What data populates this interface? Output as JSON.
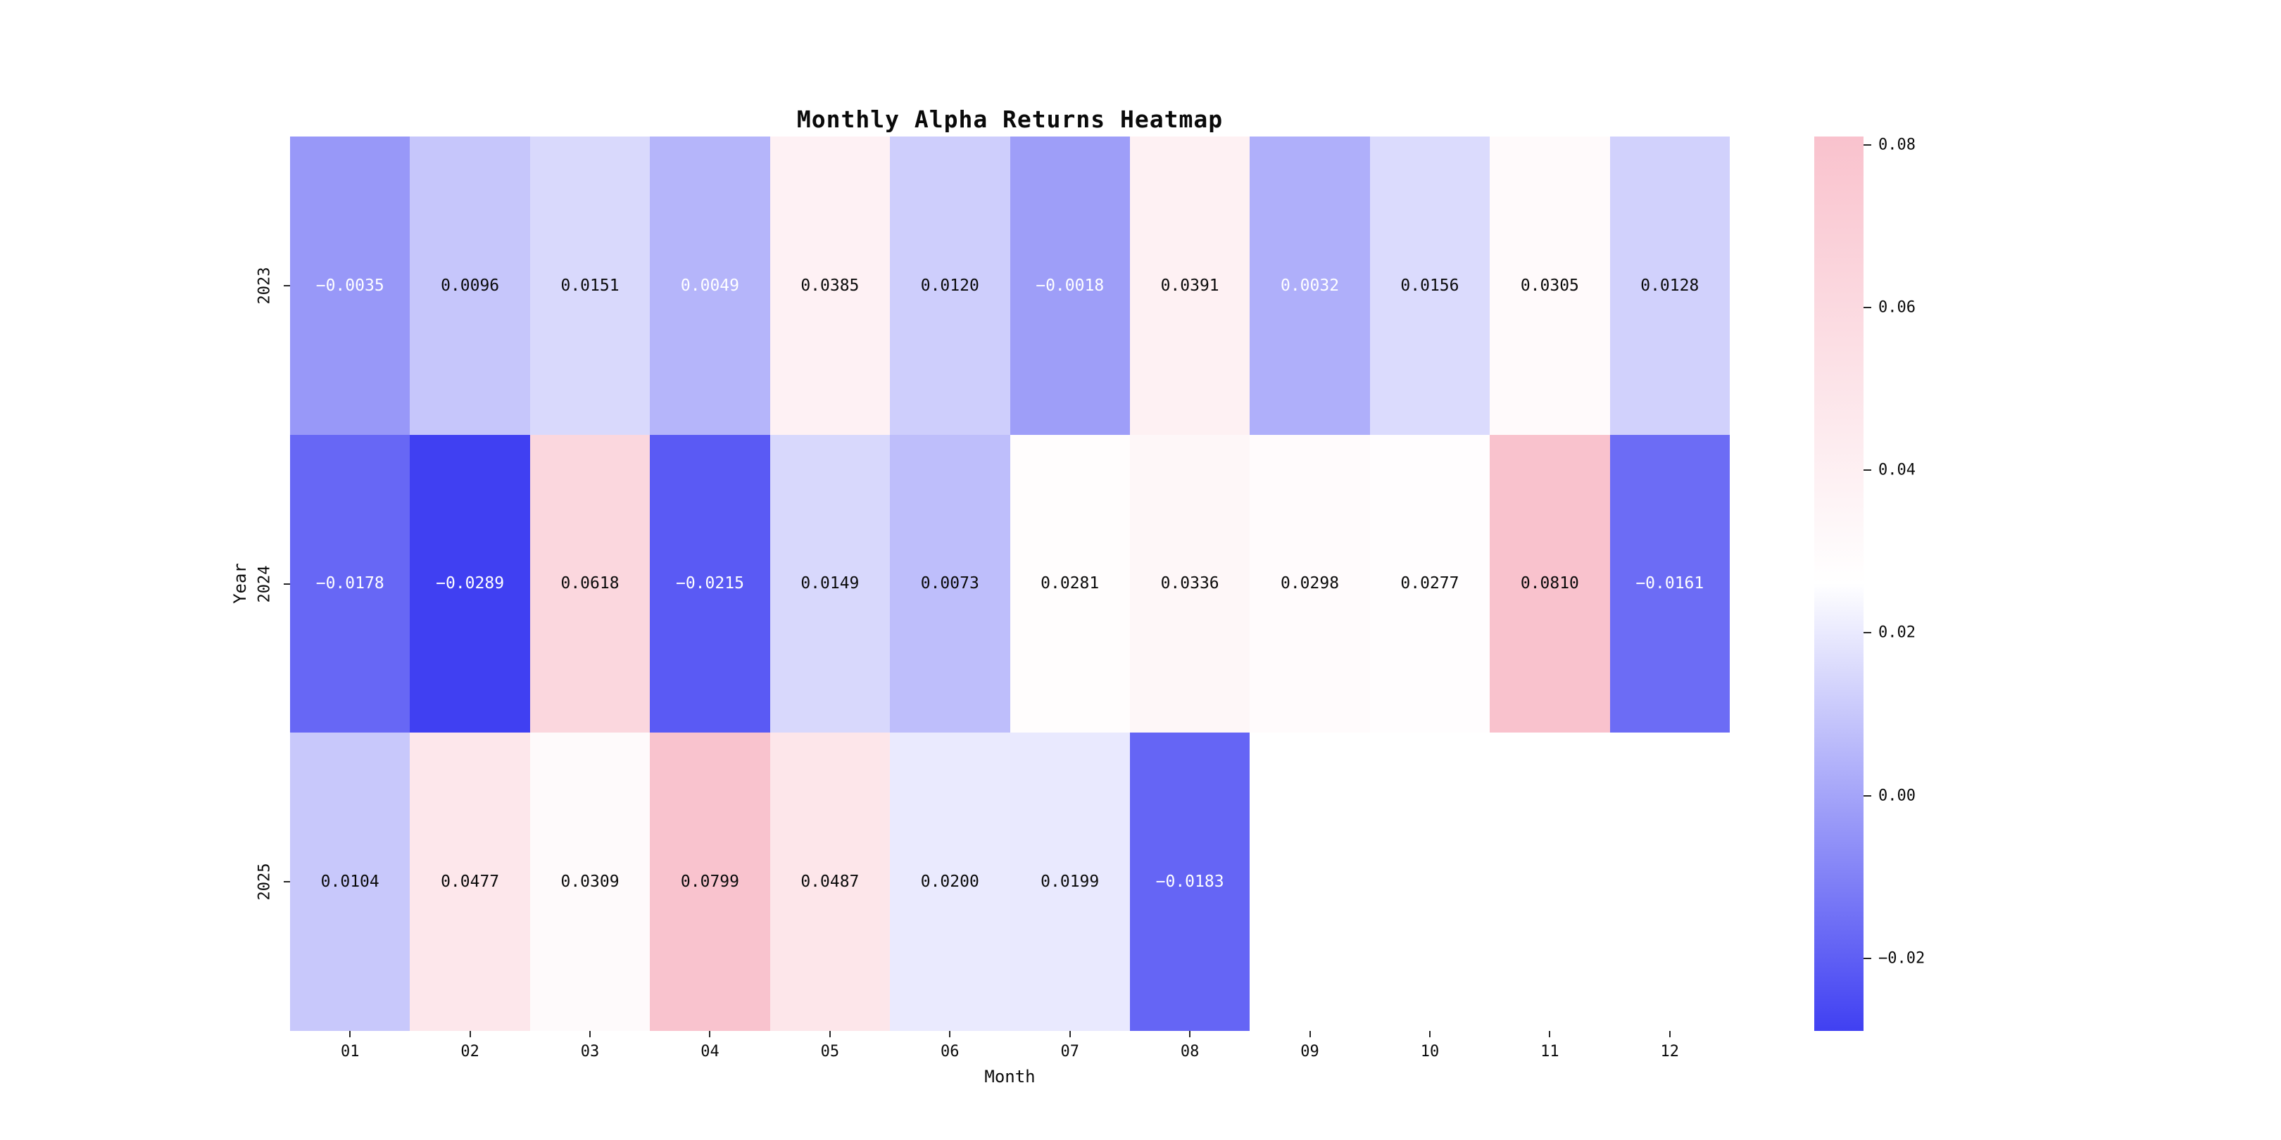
{
  "figure": {
    "background_color": "#ffffff"
  },
  "chart_data": {
    "type": "heatmap",
    "title": "Monthly Alpha Returns Heatmap",
    "xlabel": "Month",
    "ylabel": "Year",
    "x_tick_labels": [
      "01",
      "02",
      "03",
      "04",
      "05",
      "06",
      "07",
      "08",
      "09",
      "10",
      "11",
      "12"
    ],
    "y_tick_labels": [
      "2023",
      "2024",
      "2025"
    ],
    "values": [
      [
        -0.0035,
        0.0096,
        0.0151,
        0.0049,
        0.0385,
        0.012,
        -0.0018,
        0.0391,
        0.0032,
        0.0156,
        0.0305,
        0.0128
      ],
      [
        -0.0178,
        -0.0289,
        0.0618,
        -0.0215,
        0.0149,
        0.0073,
        0.0281,
        0.0336,
        0.0298,
        0.0277,
        0.081,
        -0.0161
      ],
      [
        0.0104,
        0.0477,
        0.0309,
        0.0799,
        0.0487,
        0.02,
        0.0199,
        -0.0183,
        null,
        null,
        null,
        null
      ]
    ],
    "cell_value_decimals": 4,
    "colormap": {
      "vmin": -0.0289,
      "vmax": 0.081,
      "center": 0.0261,
      "min_color": "#4040f2",
      "mid_color": "#ffffff",
      "max_color": "#f9c2cd"
    },
    "annotation": {
      "light_text_color": "#ffffff",
      "dark_text_color": "#0a0a0a",
      "light_text_below_value": 0.006
    },
    "colorbar": {
      "tick_values": [
        0.08,
        0.06,
        0.04,
        0.02,
        0.0,
        -0.02
      ],
      "tick_label_decimals": 2
    },
    "legend_position": "right",
    "grid": false
  }
}
